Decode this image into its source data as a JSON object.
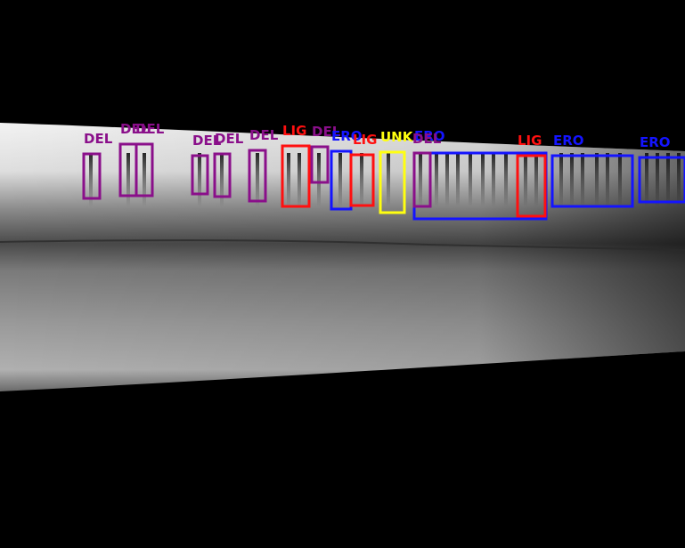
{
  "classes": {
    "DEL": {
      "color": "#8a0f8a"
    },
    "LIG": {
      "color": "#ff1010"
    },
    "ERO": {
      "color": "#1414ff"
    },
    "UNK": {
      "color": "#ffff10"
    }
  },
  "annotations": [
    {
      "label": "DEL",
      "cls": "DEL"
    },
    {
      "label": "DEL",
      "cls": "DEL"
    },
    {
      "label": "DEL",
      "cls": "DEL"
    },
    {
      "label": "DEL",
      "cls": "DEL"
    },
    {
      "label": "DEL",
      "cls": "DEL"
    },
    {
      "label": "DEL",
      "cls": "DEL"
    },
    {
      "label": "LIG",
      "cls": "LIG"
    },
    {
      "label": "DEL",
      "cls": "DEL"
    },
    {
      "label": "ERO",
      "cls": "ERO"
    },
    {
      "label": "LIG",
      "cls": "LIG"
    },
    {
      "label": "UNK",
      "cls": "UNK"
    },
    {
      "label": "ERO",
      "cls": "ERO"
    },
    {
      "label": "DEL",
      "cls": "DEL"
    },
    {
      "label": "LIG",
      "cls": "LIG"
    },
    {
      "label": "ERO",
      "cls": "ERO"
    },
    {
      "label": "ERO",
      "cls": "ERO"
    }
  ]
}
